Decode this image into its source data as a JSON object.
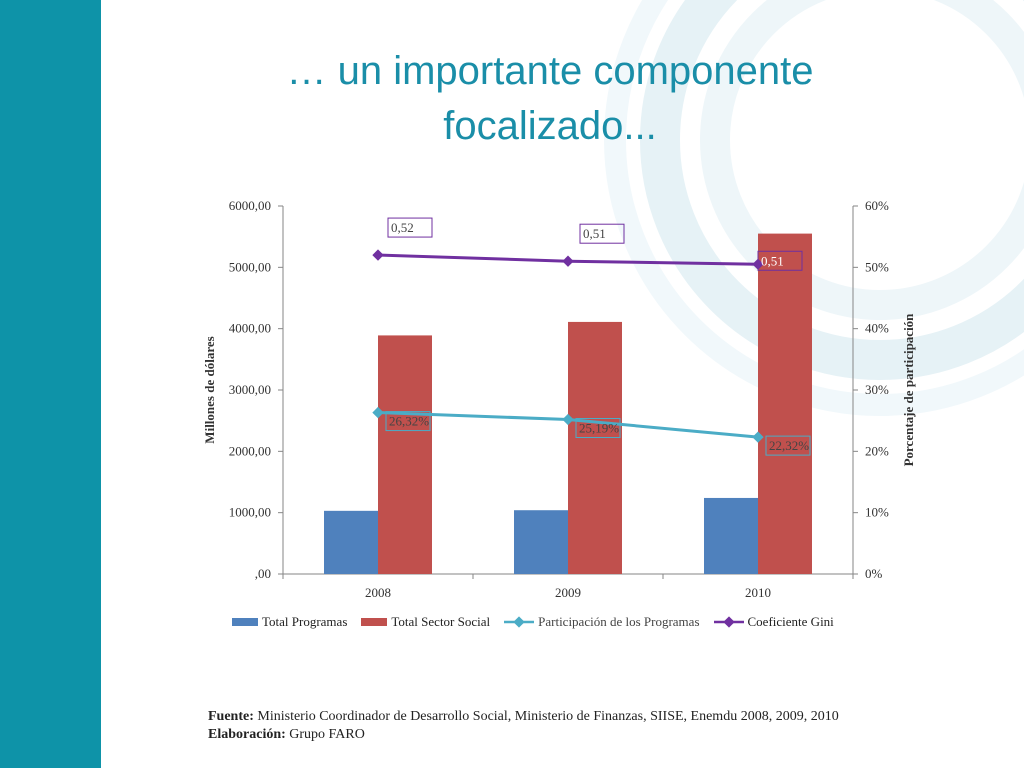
{
  "slide": {
    "title_line1": "… un importante componente",
    "title_line2": "focalizado..."
  },
  "colors": {
    "sidebar": "#0e93a8",
    "title": "#1a8ea8",
    "total_programas": "#4f81bd",
    "total_sector_social": "#c0504d",
    "participacion": "#4bacc6",
    "gini": "#7030a0"
  },
  "chart_data": {
    "type": "bar",
    "categories": [
      "2008",
      "2009",
      "2010"
    ],
    "ylabel": "Millones de dólares",
    "y2label": "Porcentaje de participación",
    "ylim": [
      0,
      6000
    ],
    "y2lim": [
      0,
      60
    ],
    "y_ticks": [
      ",00",
      "1000,00",
      "2000,00",
      "3000,00",
      "4000,00",
      "5000,00",
      "6000,00"
    ],
    "y2_ticks": [
      "0%",
      "10%",
      "20%",
      "30%",
      "40%",
      "50%",
      "60%"
    ],
    "series": [
      {
        "name": "Total Programas",
        "type": "bar",
        "axis": "left",
        "values": [
          1030,
          1040,
          1240
        ]
      },
      {
        "name": "Total Sector Social",
        "type": "bar",
        "axis": "left",
        "values": [
          3890,
          4110,
          5550
        ]
      },
      {
        "name": "Participación de los Programas",
        "type": "line",
        "axis": "right",
        "values": [
          26.32,
          25.19,
          22.32
        ],
        "labels": [
          "26,32%",
          "25,19%",
          "22,32%"
        ]
      },
      {
        "name": "Coeficiente Gini",
        "type": "line",
        "axis": "right",
        "values": [
          52,
          51,
          50.5
        ],
        "labels": [
          "0,52",
          "0,51",
          "0,51"
        ]
      }
    ],
    "legend_position": "bottom",
    "grid": false
  },
  "source": {
    "fuente_label": "Fuente:",
    "fuente_text": "Ministerio Coordinador de Desarrollo Social, Ministerio de Finanzas, SIISE, Enemdu 2008, 2009, 2010",
    "elaboracion_label": "Elaboración:",
    "elaboracion_text": "Grupo FARO"
  }
}
